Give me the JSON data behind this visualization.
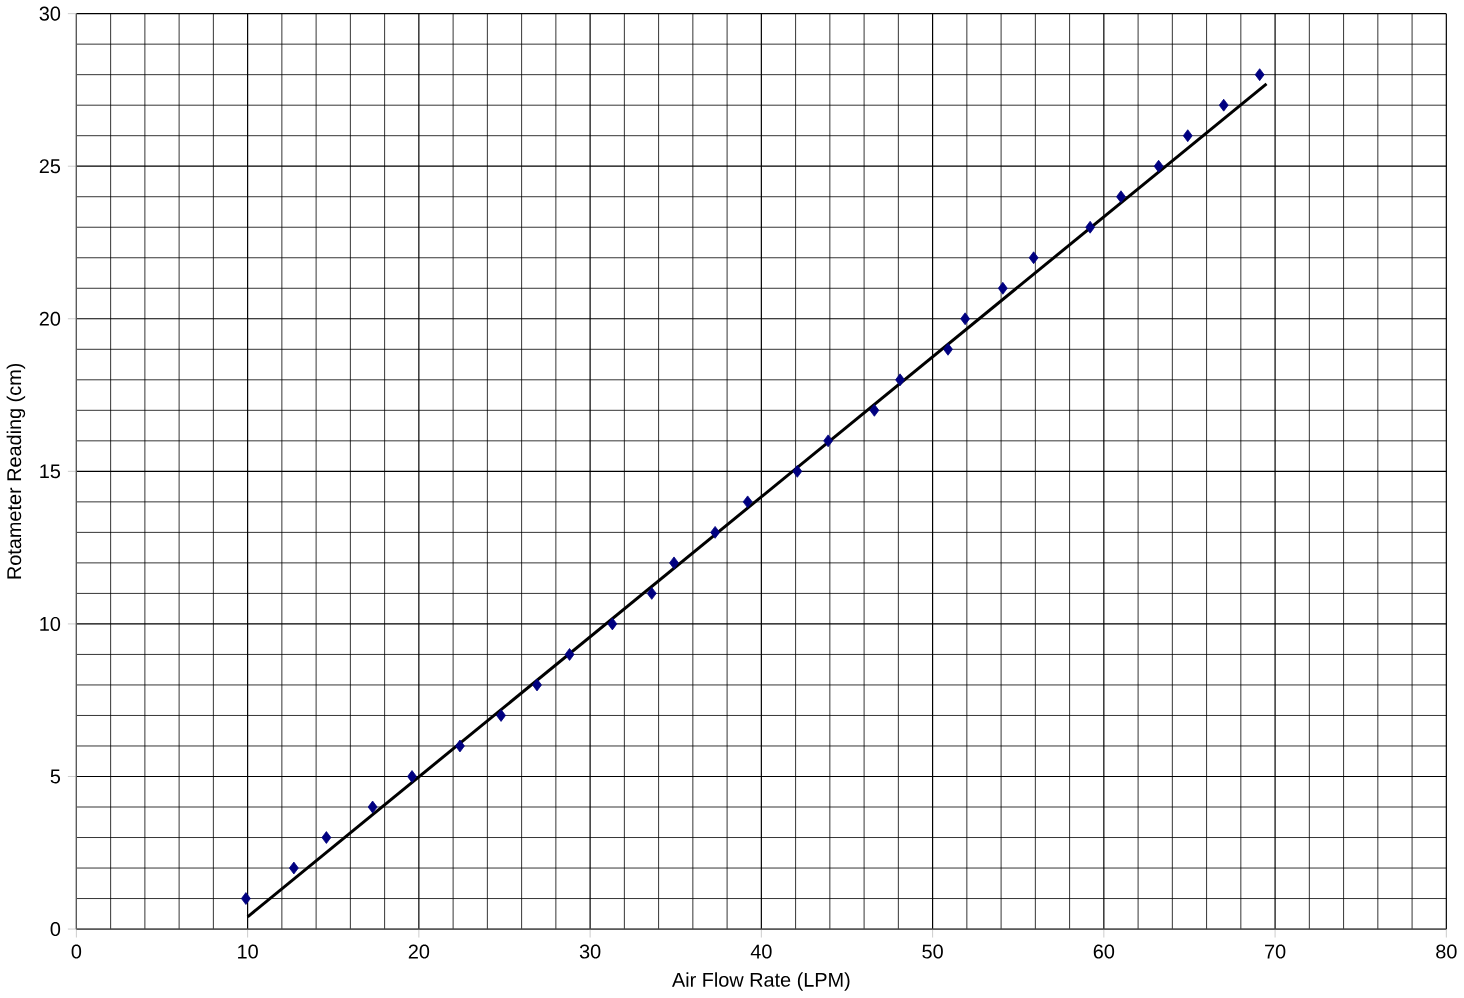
{
  "chart_data": {
    "type": "scatter",
    "xlabel": "Air Flow Rate (LPM)",
    "ylabel": "Rotameter Reading (cm)",
    "xlim": [
      0,
      80
    ],
    "xticks": [
      0,
      10,
      20,
      30,
      40,
      50,
      60,
      70,
      80
    ],
    "ylim": [
      0,
      30
    ],
    "yticks": [
      0,
      5,
      10,
      15,
      20,
      25,
      30
    ],
    "grid": true,
    "series": [
      {
        "marker": "diamond",
        "color": "#000080",
        "x": [
          9.9,
          12.7,
          14.6,
          17.3,
          19.6,
          22.4,
          24.8,
          26.9,
          28.8,
          31.3,
          33.6,
          34.9,
          37.3,
          39.2,
          42.1,
          43.9,
          46.6,
          48.1,
          50.9,
          51.9,
          54.1,
          55.9,
          59.2,
          61.0,
          63.2,
          64.9,
          67.0,
          69.1
        ],
        "values": [
          1,
          2,
          3,
          4,
          5,
          6,
          7,
          8,
          9,
          10,
          11,
          12,
          13,
          14,
          15,
          16,
          17,
          18,
          19,
          20,
          21,
          22,
          23,
          24,
          25,
          26,
          27,
          28
        ]
      },
      {
        "type": "line",
        "marker": "none",
        "color": "#000000",
        "x": [
          10,
          69.5
        ],
        "values": [
          0.4,
          27.7
        ]
      }
    ]
  }
}
